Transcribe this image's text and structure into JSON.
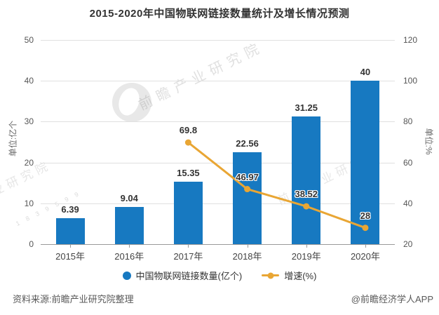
{
  "title": "2015-2020年中国物联网链接数量统计及增长情况预测",
  "chart_data": {
    "type": "bar",
    "subtype": "bar+line combo",
    "categories": [
      "2015年",
      "2016年",
      "2017年",
      "2018年",
      "2019年",
      "2020年"
    ],
    "series": [
      {
        "name": "中国物联网链接数量(亿个)",
        "type": "bar",
        "axis": "left",
        "color": "#1779C1",
        "values": [
          6.39,
          9.04,
          15.35,
          22.56,
          31.25,
          40
        ]
      },
      {
        "name": "增速(%)",
        "type": "line",
        "axis": "right",
        "color": "#E9A634",
        "values": [
          null,
          null,
          69.8,
          46.97,
          38.52,
          28
        ]
      }
    ],
    "y_left": {
      "name": "单位:亿个",
      "min": 0,
      "max": 50,
      "ticks": [
        0,
        10,
        20,
        30,
        40,
        50
      ]
    },
    "y_right": {
      "name": "单位:%",
      "min": 20,
      "max": 120,
      "ticks": [
        20,
        40,
        60,
        80,
        100,
        120
      ]
    },
    "grid": true,
    "legend_position": "bottom",
    "data_labels": true
  },
  "footer": {
    "source": "资料来源:前瞻产业研究院整理",
    "brand": "@前瞻经济学人APP"
  },
  "watermarks": {
    "texts": [
      "前瞻产业研究院",
      "前瞻产业研究院",
      "产业研究院"
    ],
    "digits": "1 8 3 9 5 9 9"
  }
}
